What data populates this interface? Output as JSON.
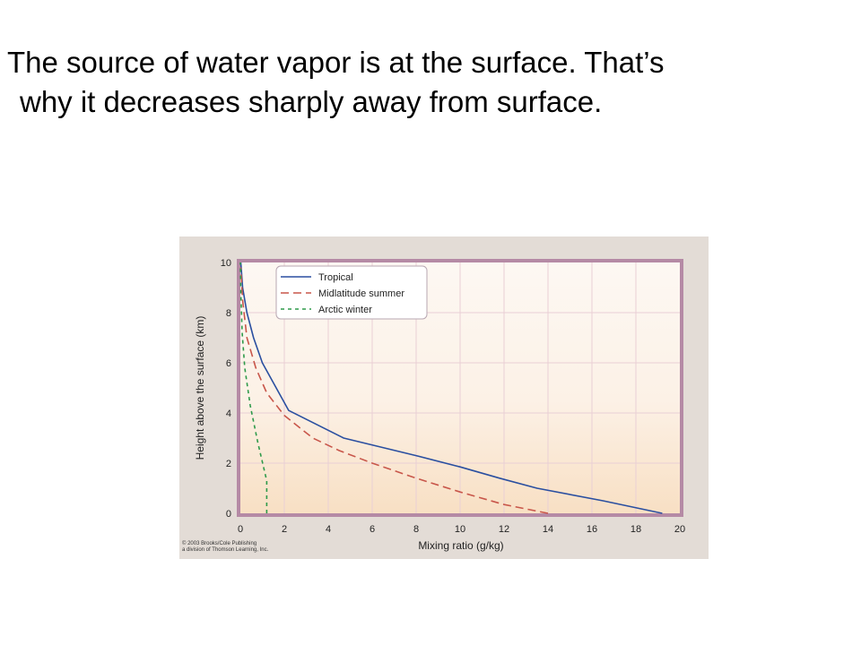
{
  "slide": {
    "title_line1": "The source of water vapor is at the surface. That’s",
    "title_line2": "why it decreases sharply away from surface."
  },
  "figure": {
    "credit_line1": "© 2003 Brooks/Cole Publishing",
    "credit_line2": "a division of Thomson Learning, Inc."
  },
  "chart_data": {
    "type": "line",
    "title": "",
    "xlabel": "Mixing ratio (g/kg)",
    "ylabel": "Height above the surface (km)",
    "xlim": [
      0,
      20
    ],
    "ylim": [
      0,
      10
    ],
    "xticks": [
      0,
      2,
      4,
      6,
      8,
      10,
      12,
      14,
      16,
      18,
      20
    ],
    "yticks": [
      0,
      2,
      4,
      6,
      8,
      10
    ],
    "grid": true,
    "legend_position": "top-left",
    "series": [
      {
        "name": "Tropical",
        "color": "#2a4fa0",
        "style": "solid",
        "points": [
          [
            19.2,
            0
          ],
          [
            16.5,
            0.5
          ],
          [
            13.5,
            1.0
          ],
          [
            11.8,
            1.4
          ],
          [
            10.0,
            1.85
          ],
          [
            8.0,
            2.3
          ],
          [
            4.7,
            3.0
          ],
          [
            2.2,
            4.1
          ],
          [
            1.0,
            6.0
          ],
          [
            0.6,
            7.0
          ],
          [
            0.3,
            8.0
          ],
          [
            0.1,
            9.0
          ],
          [
            0.02,
            10.0
          ]
        ]
      },
      {
        "name": "Midlatitude summer",
        "color": "#c8564a",
        "style": "dashed",
        "points": [
          [
            14.0,
            0
          ],
          [
            12.0,
            0.35
          ],
          [
            10.0,
            0.85
          ],
          [
            8.0,
            1.4
          ],
          [
            6.0,
            2.0
          ],
          [
            4.5,
            2.5
          ],
          [
            3.3,
            3.0
          ],
          [
            2.0,
            3.9
          ],
          [
            1.2,
            4.8
          ],
          [
            0.7,
            5.8
          ],
          [
            0.3,
            7.0
          ],
          [
            0.1,
            8.5
          ],
          [
            0.02,
            9.8
          ]
        ]
      },
      {
        "name": "Arctic winter",
        "color": "#2e9a4a",
        "style": "dashed",
        "points": [
          [
            1.2,
            0
          ],
          [
            1.2,
            1.3
          ],
          [
            0.8,
            2.8
          ],
          [
            0.45,
            4.3
          ],
          [
            0.2,
            5.8
          ],
          [
            0.08,
            7.2
          ],
          [
            0.02,
            8.8
          ],
          [
            0.0,
            10.0
          ]
        ]
      }
    ]
  }
}
